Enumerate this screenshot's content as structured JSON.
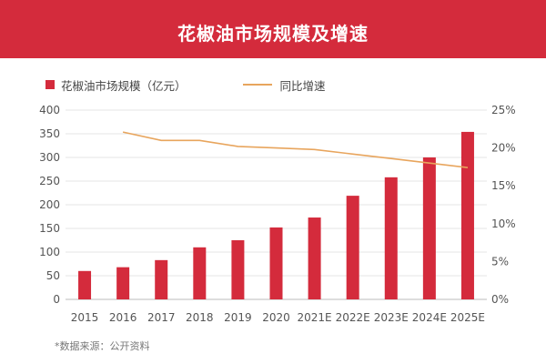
{
  "chart_data": {
    "type": "bar",
    "title": "花椒油市场规模及增速",
    "categories": [
      "2015",
      "2016",
      "2017",
      "2018",
      "2019",
      "2020",
      "2021E",
      "2022E",
      "2023E",
      "2024E",
      "2025E"
    ],
    "series": [
      {
        "name": "花椒油市场规模（亿元）",
        "type": "bar",
        "axis": "left",
        "color": "#d42b3c",
        "values": [
          60,
          68,
          83,
          110,
          125,
          152,
          173,
          219,
          258,
          300,
          354
        ]
      },
      {
        "name": "同比增速",
        "type": "line",
        "axis": "right",
        "color": "#e8a55d",
        "values": [
          null,
          22.1,
          21.0,
          21.0,
          20.2,
          20.0,
          19.8,
          19.2,
          18.6,
          18.0,
          17.4
        ]
      }
    ],
    "ylim": [
      0,
      400
    ],
    "y_ticks": [
      0,
      50,
      100,
      150,
      200,
      250,
      300,
      350,
      400
    ],
    "y2lim": [
      0,
      25
    ],
    "y2_tick_labels": [
      "0%",
      "5%",
      "10%",
      "15%",
      "20%",
      "25%"
    ],
    "grid": true,
    "legend": "top-left",
    "source": "*数据来源：公开资料"
  },
  "colors": {
    "banner": "#d42b3c",
    "tick_text": "#555555",
    "grid": "#e4e4e4",
    "axis": "#bbbbbb"
  }
}
